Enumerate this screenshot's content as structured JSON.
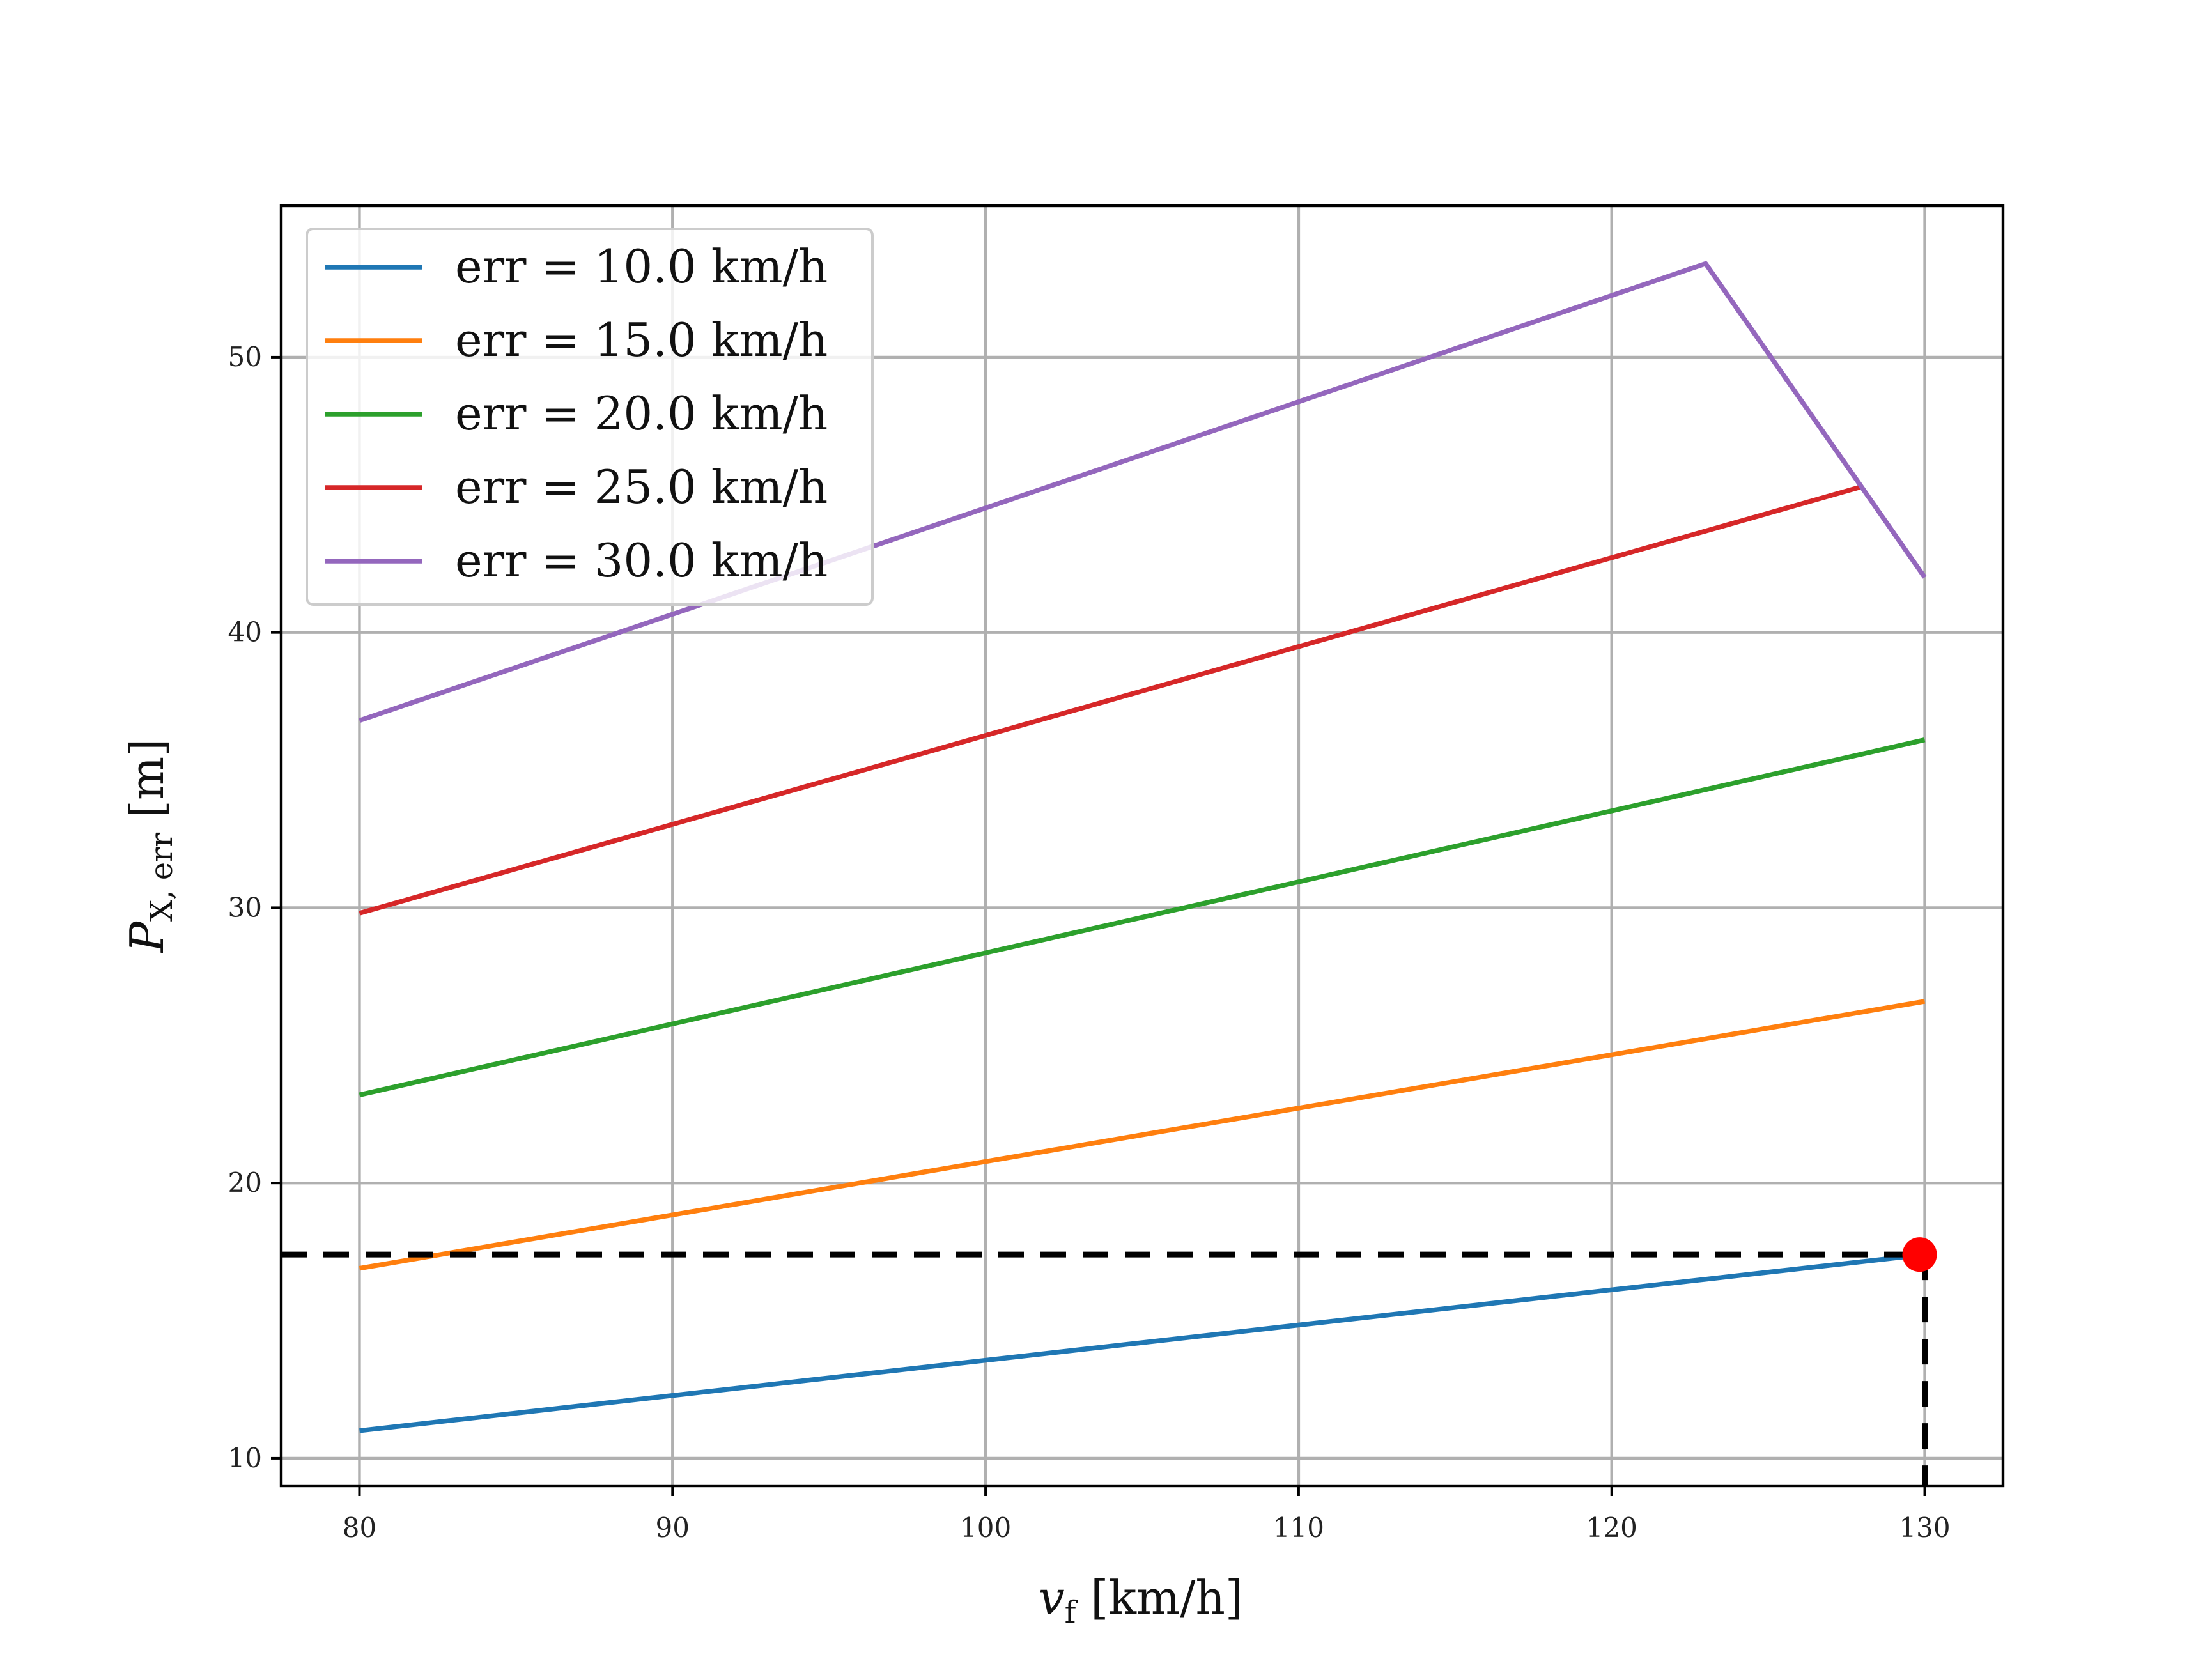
{
  "chart_data": {
    "type": "line",
    "title": "",
    "xlabel": {
      "main": "v",
      "sub": "f",
      "unit": " [km/h]"
    },
    "ylabel": {
      "main": "P",
      "sub": "X, err",
      "unit": " [m]"
    },
    "xlim": [
      77.5,
      132.5
    ],
    "ylim": [
      9.0,
      55.5
    ],
    "xticks": [
      80,
      90,
      100,
      110,
      120,
      130
    ],
    "yticks": [
      10,
      20,
      30,
      40,
      50
    ],
    "grid": true,
    "legend_position": "top-left",
    "series": [
      {
        "name": "err = 10.0 km/h",
        "color": "#1f77b4",
        "x": [
          80,
          130
        ],
        "y": [
          11.0,
          17.4
        ]
      },
      {
        "name": "err = 15.0 km/h",
        "color": "#ff7f0e",
        "x": [
          80,
          130
        ],
        "y": [
          16.9,
          26.6
        ]
      },
      {
        "name": "err = 20.0 km/h",
        "color": "#2ca02c",
        "x": [
          80,
          130
        ],
        "y": [
          23.2,
          36.1
        ]
      },
      {
        "name": "err = 25.0 km/h",
        "color": "#d62728",
        "x": [
          80,
          128
        ],
        "y": [
          29.8,
          45.3
        ]
      },
      {
        "name": "err = 30.0 km/h",
        "color": "#9467bd",
        "x": [
          80,
          123,
          130
        ],
        "y": [
          36.8,
          53.4,
          42.0
        ]
      }
    ],
    "annotations": {
      "marker": {
        "x": 130,
        "y": 17.4,
        "color": "#ff0000"
      },
      "dashed_guides": {
        "color": "#000000"
      }
    }
  }
}
